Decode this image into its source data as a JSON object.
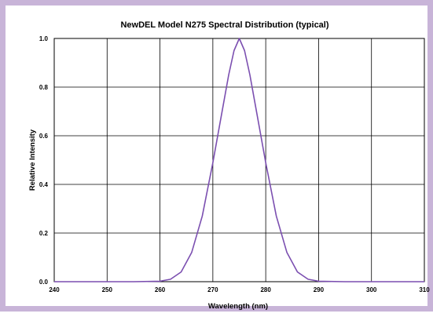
{
  "chart_data": {
    "type": "line",
    "title": "NewDEL Model N275 Spectral Distribution (typical)",
    "xlabel": "Wavelength (nm)",
    "ylabel": "Relative Intensity",
    "xlim": [
      240,
      310
    ],
    "ylim": [
      0,
      1
    ],
    "xticks": [
      240,
      250,
      260,
      270,
      280,
      290,
      300,
      310
    ],
    "yticks": [
      "0.0",
      "0.2",
      "0.4",
      "0.6",
      "0.8",
      "1.0"
    ],
    "grid": true,
    "legend": "none",
    "series": [
      {
        "color": "#7b4fb0",
        "x": [
          240,
          255,
          260,
          262,
          264,
          266,
          268,
          270,
          271,
          272,
          273,
          274,
          275,
          276,
          277,
          278,
          279,
          280,
          282,
          284,
          286,
          288,
          290,
          295,
          310
        ],
        "y": [
          0,
          0,
          0.002,
          0.01,
          0.04,
          0.12,
          0.27,
          0.49,
          0.61,
          0.73,
          0.85,
          0.95,
          1.0,
          0.95,
          0.85,
          0.73,
          0.61,
          0.49,
          0.27,
          0.12,
          0.04,
          0.01,
          0.002,
          0,
          0
        ]
      }
    ]
  }
}
